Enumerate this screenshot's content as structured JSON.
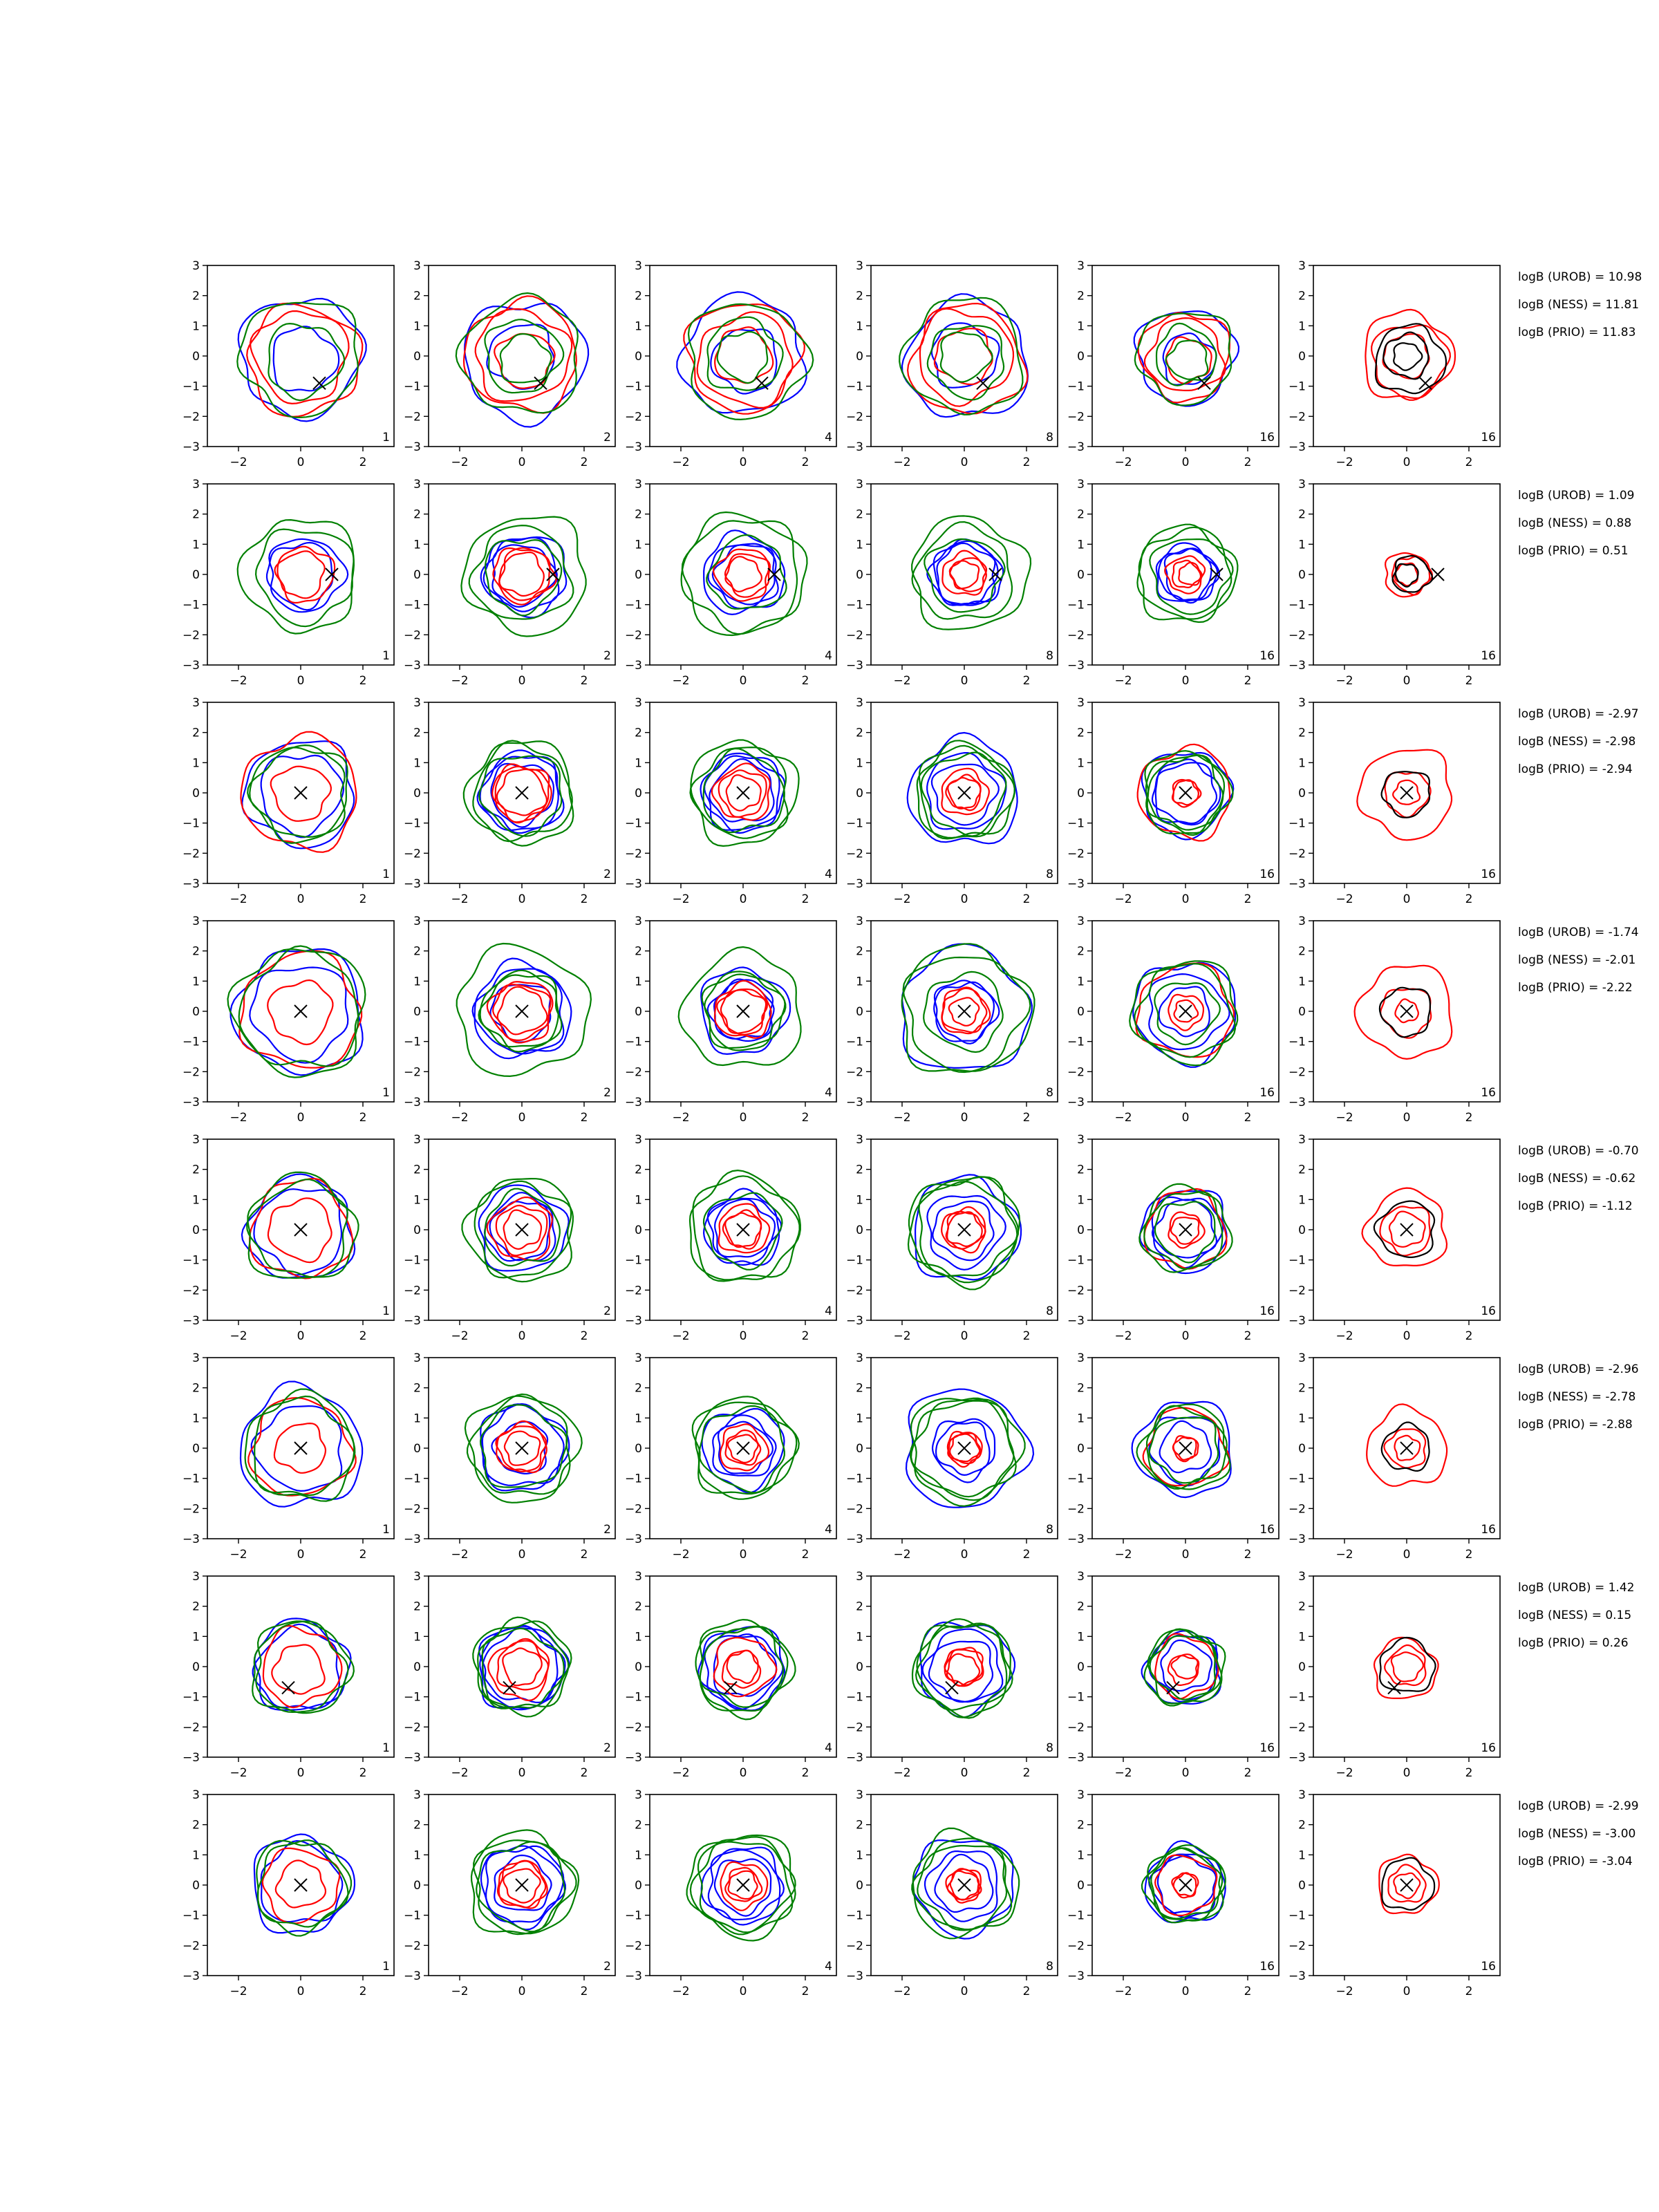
{
  "chart_data": {
    "type": "contour-grid",
    "rows": 8,
    "cols": 6,
    "xlim": [
      -3,
      3
    ],
    "ylim": [
      -3,
      3
    ],
    "xticks": [
      -2,
      0,
      2
    ],
    "yticks": [
      -3,
      -2,
      -1,
      0,
      1,
      2,
      3
    ],
    "xtick_labels": [
      "−2",
      "0",
      "2"
    ],
    "ytick_labels": [
      "−3",
      "−2",
      "−1",
      "0",
      "1",
      "2",
      "3"
    ],
    "column_labels": [
      "1",
      "2",
      "4",
      "8",
      "16",
      "16"
    ],
    "colors": {
      "blue": "#0000ff",
      "red": "#ff0000",
      "green": "#008000",
      "black": "#000000",
      "axes": "#000000"
    },
    "marker_points": [
      {
        "x": 0.6,
        "y": -0.9
      },
      {
        "x": 1.0,
        "y": 0.0
      },
      {
        "x": 0.0,
        "y": 0.0
      },
      {
        "x": 0.0,
        "y": 0.0
      },
      {
        "x": 0.0,
        "y": 0.0
      },
      {
        "x": 0.0,
        "y": 0.0
      },
      {
        "x": -0.4,
        "y": -0.7
      },
      {
        "x": 0.0,
        "y": 0.0
      }
    ],
    "logB": [
      {
        "urob": "logB (UROB) = 10.98",
        "ness": "logB (NESS) = 11.81",
        "prio": "logB (PRIO) = 11.83"
      },
      {
        "urob": "logB (UROB) = 1.09",
        "ness": "logB (NESS) = 0.88",
        "prio": "logB (PRIO) = 0.51"
      },
      {
        "urob": "logB (UROB) = -2.97",
        "ness": "logB (NESS) = -2.98",
        "prio": "logB (PRIO) = -2.94"
      },
      {
        "urob": "logB (UROB) = -1.74",
        "ness": "logB (NESS) = -2.01",
        "prio": "logB (PRIO) = -2.22"
      },
      {
        "urob": "logB (UROB) = -0.70",
        "ness": "logB (NESS) = -0.62",
        "prio": "logB (PRIO) = -1.12"
      },
      {
        "urob": "logB (UROB) = -2.96",
        "ness": "logB (NESS) = -2.78",
        "prio": "logB (PRIO) = -2.88"
      },
      {
        "urob": "logB (UROB) = 1.42",
        "ness": "logB (NESS) = 0.15",
        "prio": "logB (PRIO) = 0.26"
      },
      {
        "urob": "logB (UROB) = -2.99",
        "ness": "logB (NESS) = -3.00",
        "prio": "logB (PRIO) = -3.04"
      }
    ],
    "contours": [
      {
        "blue": [
          1.95,
          1.05
        ],
        "red": [
          1.5,
          1.8,
          0.9
        ],
        "green": [
          1.9,
          1.2,
          0.8
        ],
        "black": [
          1.4,
          0.9,
          0.55
        ]
      },
      {
        "blue": [
          1.05,
          1.2,
          1.3,
          1.0,
          1.05
        ],
        "red": [
          0.75,
          0.9,
          0.85,
          0.7,
          0.55,
          0.45
        ],
        "green": [
          1.85,
          1.55,
          1.95,
          1.2
        ],
        "black": [
          0.75,
          0.45
        ]
      },
      {
        "blue": [
          1.75,
          1.3,
          1.25,
          1.0,
          1.25
        ],
        "red": [
          1.85,
          0.9,
          0.9,
          0.75,
          0.55,
          0.5
        ],
        "green": [
          1.5,
          1.55,
          1.7,
          1.3
        ],
        "black": [
          0.95
        ]
      },
      {
        "blue": [
          2.05,
          1.55,
          1.4,
          0.95,
          1.0
        ],
        "red": [
          1.9,
          1.0,
          0.9,
          0.75,
          0.7,
          0.45
        ],
        "green": [
          1.9,
          2.1,
          1.25,
          1.25
        ],
        "black": [
          1.0
        ]
      },
      {
        "blue": [
          1.7,
          1.4,
          1.1,
          0.95,
          1.2
        ],
        "red": [
          1.6,
          1.0,
          0.8,
          0.6,
          0.55,
          0.7
        ],
        "green": [
          1.75,
          1.55,
          1.2,
          1.7
        ],
        "black": [
          1.15
        ]
      },
      {
        "blue": [
          1.95,
          1.4,
          1.3,
          0.85,
          1.0
        ],
        "red": [
          1.6,
          0.8,
          0.75,
          0.55,
          0.45,
          0.5
        ],
        "green": [
          1.6,
          1.75,
          1.35,
          1.6
        ],
        "black": [
          0.95
        ]
      },
      {
        "blue": [
          1.5,
          1.35,
          1.35,
          1.2,
          1.0
        ],
        "red": [
          1.25,
          0.8,
          0.95,
          0.6,
          0.5,
          0.6
        ],
        "green": [
          1.5,
          1.5,
          1.3,
          1.45
        ],
        "black": [
          1.1
        ]
      },
      {
        "blue": [
          1.6,
          1.3,
          1.25,
          0.9,
          1.15
        ],
        "red": [
          1.2,
          0.75,
          0.75,
          0.55,
          0.45,
          0.5
        ],
        "green": [
          1.5,
          1.4,
          1.55,
          1.7
        ],
        "black": [
          1.05
        ]
      }
    ]
  }
}
